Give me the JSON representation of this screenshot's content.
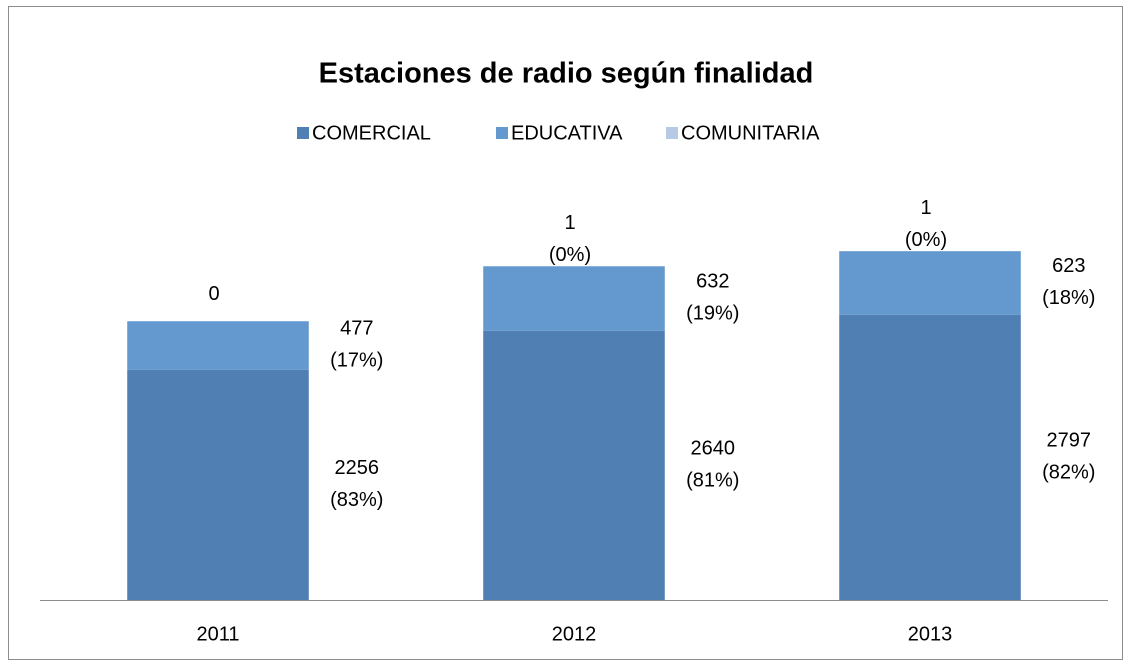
{
  "chart_data": {
    "type": "stacked_bar",
    "title": "Estaciones de radio según finalidad",
    "categories": [
      "2011",
      "2012",
      "2013"
    ],
    "legend": "top",
    "series": [
      {
        "name": "COMERCIAL",
        "color": "#4f7fb3",
        "values": [
          2256,
          2640,
          2797
        ],
        "value_labels": [
          "2256 (83%)",
          "2640 (81%)",
          "2797 (82%)"
        ]
      },
      {
        "name": "EDUCATIVA",
        "color": "#6399ce",
        "values": [
          477,
          632,
          623
        ],
        "value_labels": [
          "477 (17%)",
          "632 (19%)",
          "623 (18%)"
        ]
      },
      {
        "name": "COMUNITARIA",
        "color": "#b8c9e3",
        "values": [
          0,
          1,
          1
        ],
        "value_labels": [
          "0",
          "1 (0%)",
          "1 (0%)"
        ]
      }
    ]
  }
}
